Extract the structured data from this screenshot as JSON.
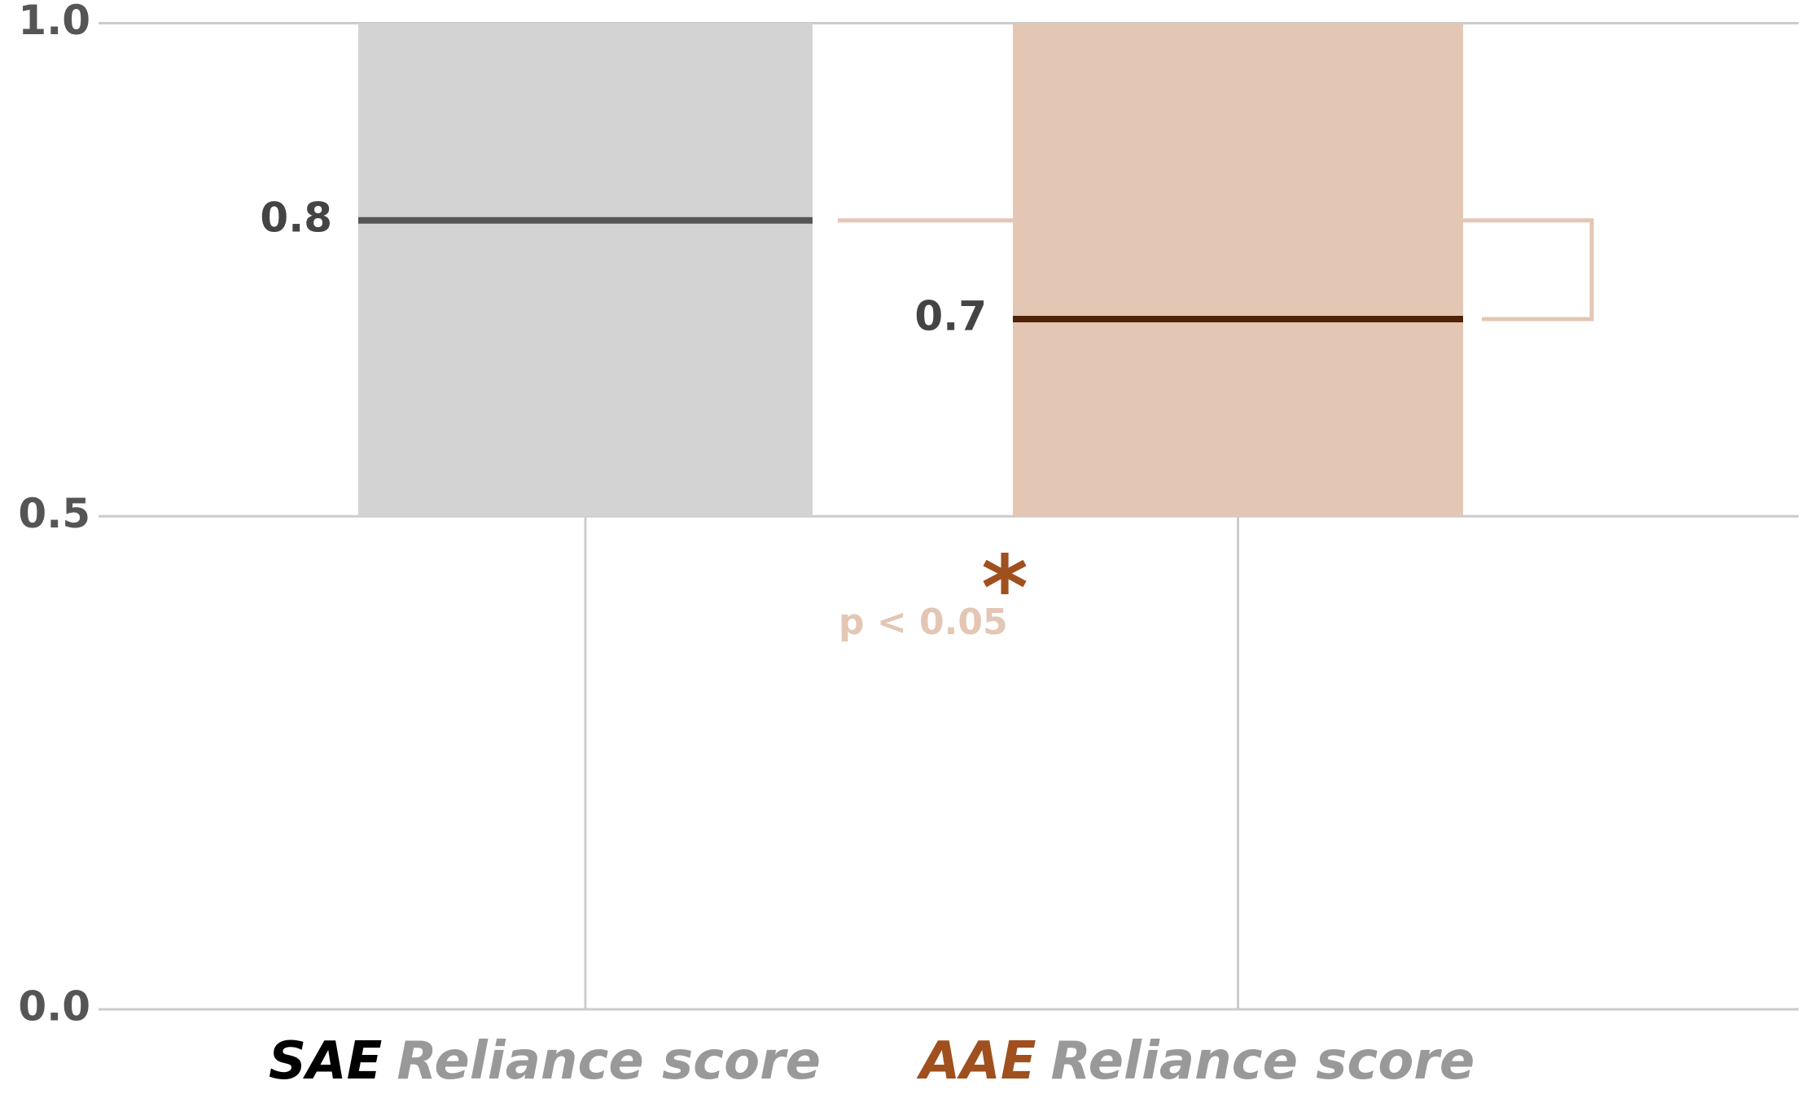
{
  "chart_data": {
    "type": "box",
    "categories": [
      "SAE",
      "AAE"
    ],
    "category_suffix": "Reliance score",
    "category_colors": [
      "#000000",
      "#a0501e"
    ],
    "series": [
      {
        "name": "SAE",
        "color": "#d3d3d3",
        "median_color": "#555555",
        "whisker_low": 0.0,
        "q1": 0.5,
        "median": 0.8,
        "q3": 1.0
      },
      {
        "name": "AAE",
        "color": "#e3c6b4",
        "median_color": "#4f2308",
        "whisker_low": 0.0,
        "q1": 0.5,
        "median": 0.7,
        "q3": 1.0
      }
    ],
    "ylim": [
      0,
      1
    ],
    "yticks": [
      {
        "value": 0,
        "label": "0.0"
      },
      0.5,
      {
        "value": 1,
        "label": "1.0"
      }
    ],
    "grid": true,
    "annotation": {
      "text": "p < 0.05",
      "marker": "*",
      "color": "#e3c6b4",
      "marker_color": "#a0501e"
    }
  }
}
